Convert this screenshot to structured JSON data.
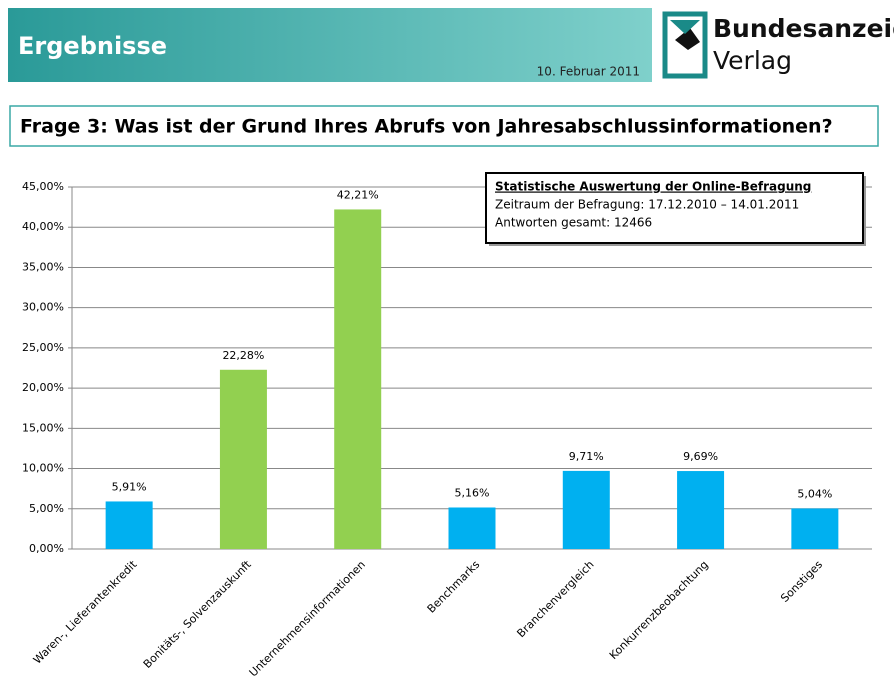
{
  "header": {
    "title": "Ergebnisse",
    "date": "10. Februar 2011",
    "logo_line1": "Bundesanzeiger",
    "logo_line2": "Verlag"
  },
  "question": "Frage 3: Was ist der Grund Ihres Abrufs von Jahresabschlussinformationen?",
  "info_box": {
    "title": "Statistische Auswertung der Online-Befragung",
    "lines": [
      "Zeitraum der Befragung: 17.12.2010 – 14.01.2011",
      "Antworten gesamt: 12466"
    ]
  },
  "chart_data": {
    "type": "bar",
    "categories": [
      "Waren-, Lieferantenkredit",
      "Bonitäts-, Solvenzauskunft",
      "Unternehmensinformationen",
      "Benchmarks",
      "Branchenvergleich",
      "Konkurrenzbeobachtung",
      "Sonstiges"
    ],
    "values": [
      5.91,
      22.28,
      42.21,
      5.16,
      9.71,
      9.69,
      5.04
    ],
    "value_labels": [
      "5,91%",
      "22,28%",
      "42,21%",
      "5,16%",
      "9,71%",
      "9,69%",
      "5,04%"
    ],
    "colors": [
      "#00b0f0",
      "#92d050",
      "#92d050",
      "#00b0f0",
      "#00b0f0",
      "#00b0f0",
      "#00b0f0"
    ],
    "ylim": [
      0,
      45
    ],
    "yticks": [
      {
        "value": 0,
        "label": "0,00%"
      },
      {
        "value": 5,
        "label": "5,00%"
      },
      {
        "value": 10,
        "label": "10,00%"
      },
      {
        "value": 15,
        "label": "15,00%"
      },
      {
        "value": 20,
        "label": "20,00%"
      },
      {
        "value": 25,
        "label": "25,00%"
      },
      {
        "value": 30,
        "label": "30,00%"
      },
      {
        "value": 35,
        "label": "35,00%"
      },
      {
        "value": 40,
        "label": "40,00%"
      },
      {
        "value": 45,
        "label": "45,00%"
      }
    ],
    "grid": true
  }
}
